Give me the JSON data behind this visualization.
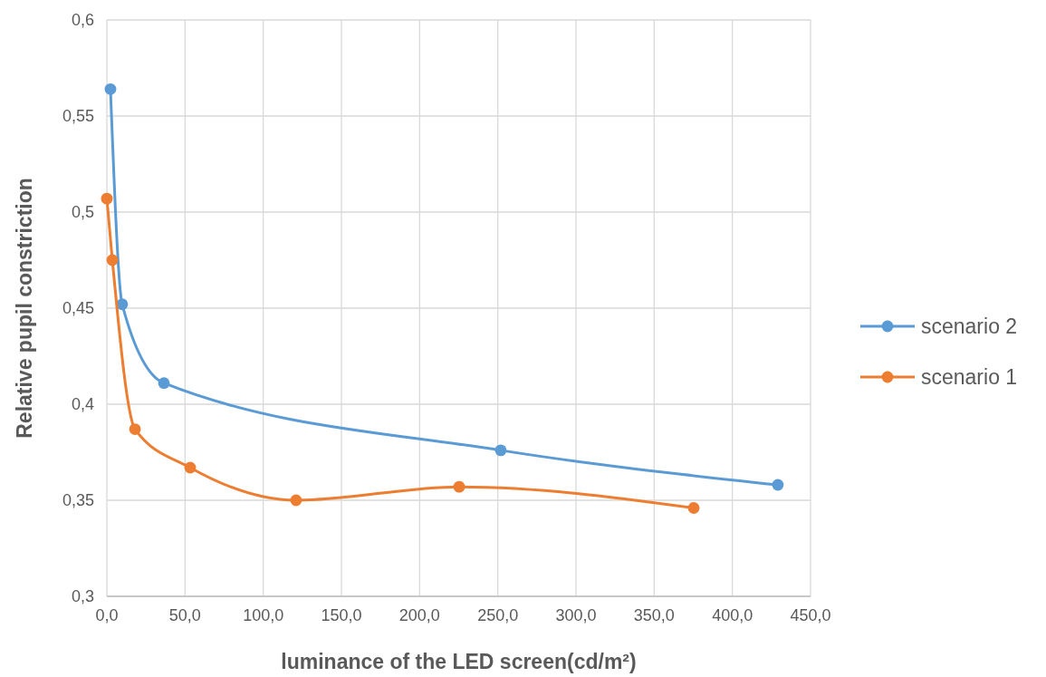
{
  "chart_data": {
    "type": "line",
    "xlabel": "luminance of the LED screen(cd/m²)",
    "ylabel": "Relative pupil constriction",
    "xlim": [
      0,
      450
    ],
    "xticks": [
      {
        "value": 0,
        "label": "0,0"
      },
      {
        "value": 50,
        "label": "50,0"
      },
      {
        "value": 100,
        "label": "100,0"
      },
      {
        "value": 150,
        "label": "150,0"
      },
      {
        "value": 200,
        "label": "200,0"
      },
      {
        "value": 250,
        "label": "250,0"
      },
      {
        "value": 300,
        "label": "300,0"
      },
      {
        "value": 350,
        "label": "350,0"
      },
      {
        "value": 400,
        "label": "400,0"
      },
      {
        "value": 450,
        "label": "450,0"
      }
    ],
    "ylim": [
      0.3,
      0.6
    ],
    "yticks": [
      {
        "value": 0.3,
        "label": "0,3"
      },
      {
        "value": 0.35,
        "label": "0,35"
      },
      {
        "value": 0.4,
        "label": "0,4"
      },
      {
        "value": 0.45,
        "label": "0,45"
      },
      {
        "value": 0.5,
        "label": "0,5"
      },
      {
        "value": 0.55,
        "label": "0,55"
      },
      {
        "value": 0.6,
        "label": "0,6"
      }
    ],
    "grid": true,
    "legend": "right",
    "marker": "circle",
    "line_style": "solid",
    "series": [
      {
        "name": "scenario 2",
        "color": "#5b9bd5",
        "x": [
          2.3,
          9.8,
          36.5,
          251.9,
          429.1
        ],
        "values": [
          0.564,
          0.452,
          0.411,
          0.376,
          0.358
        ]
      },
      {
        "name": "scenario 1",
        "color": "#ed7d31",
        "x": [
          0,
          3.5,
          18,
          53.3,
          121,
          225.3,
          375.3
        ],
        "values": [
          0.507,
          0.475,
          0.387,
          0.367,
          0.35,
          0.357,
          0.346
        ]
      }
    ]
  }
}
